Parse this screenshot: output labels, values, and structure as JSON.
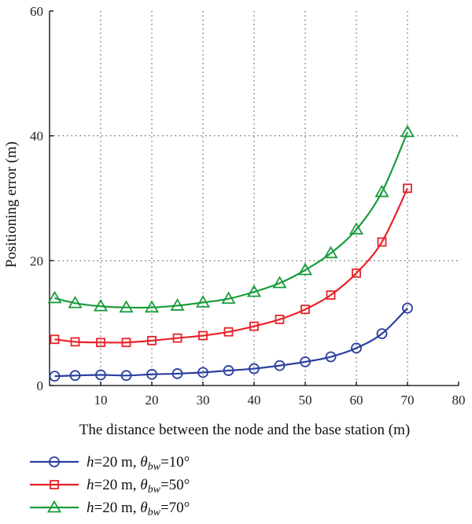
{
  "chart_data": {
    "type": "line",
    "xlabel": "The distance between the node and the base station (m)",
    "ylabel": "Positioning error (m)",
    "xlim": [
      0,
      80
    ],
    "ylim": [
      0,
      60
    ],
    "x_ticks": [
      "10",
      "20",
      "30",
      "40",
      "50",
      "60",
      "70",
      "80"
    ],
    "y_ticks": [
      "0",
      "20",
      "40",
      "60"
    ],
    "grid": true,
    "legend_position": "bottom-left, below plot",
    "x": [
      1,
      5,
      10,
      15,
      20,
      25,
      30,
      35,
      40,
      45,
      50,
      55,
      60,
      65,
      70
    ],
    "series": [
      {
        "name": "h=20 m, θbw=10°",
        "name_parts": {
          "h": "h",
          "rest": "=20 m, ",
          "theta": "θ",
          "sub": "bw",
          "value": "=10°"
        },
        "color": "#2b3f9e",
        "marker": "circle",
        "values": [
          1.5,
          1.6,
          1.7,
          1.6,
          1.8,
          1.9,
          2.1,
          2.4,
          2.7,
          3.2,
          3.8,
          4.6,
          6.0,
          8.3,
          12.4
        ]
      },
      {
        "name": "h=20 m, θbw=50°",
        "name_parts": {
          "h": "h",
          "rest": "=20 m, ",
          "theta": "θ",
          "sub": "bw",
          "value": "=50°"
        },
        "color": "#e8232b",
        "marker": "square",
        "values": [
          7.4,
          7.0,
          6.9,
          6.9,
          7.2,
          7.6,
          8.0,
          8.6,
          9.5,
          10.6,
          12.2,
          14.5,
          18.0,
          23.0,
          31.6
        ]
      },
      {
        "name": "h=20 m, θbw=70°",
        "name_parts": {
          "h": "h",
          "rest": "=20 m, ",
          "theta": "θ",
          "sub": "bw",
          "value": "=70°"
        },
        "color": "#1a9c3c",
        "marker": "triangle",
        "values": [
          14.0,
          13.2,
          12.7,
          12.5,
          12.5,
          12.8,
          13.3,
          13.9,
          15.0,
          16.4,
          18.5,
          21.2,
          25.0,
          31.0,
          40.6
        ]
      }
    ]
  }
}
